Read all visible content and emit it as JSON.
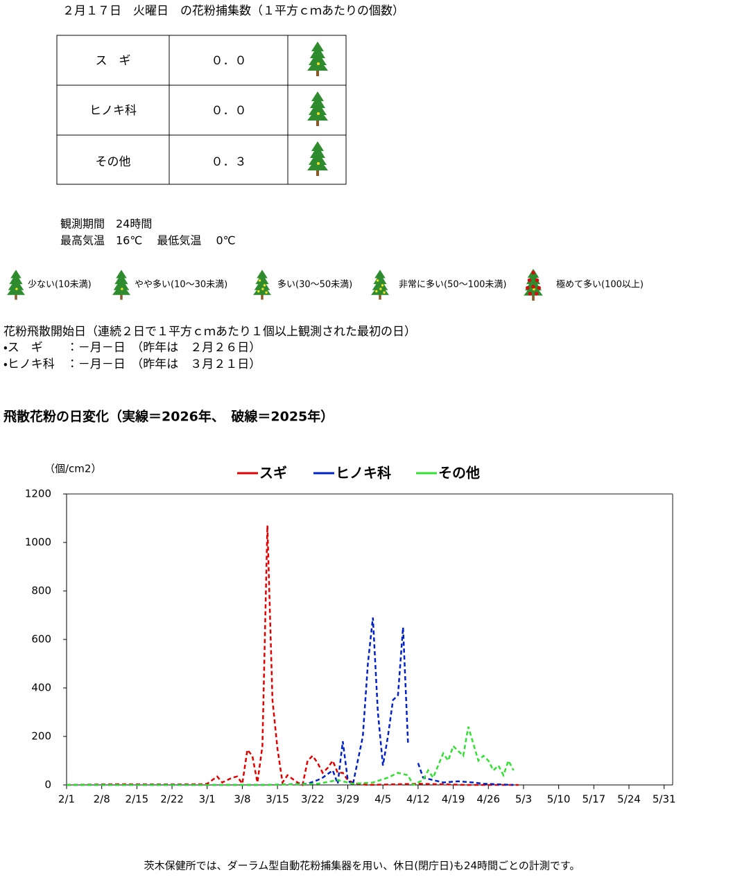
{
  "header": {
    "title": "２月１７日　火曜日　の花粉捕集数（１平方ｃｍあたりの個数）"
  },
  "table": {
    "rows": [
      [
        "ス　ギ",
        "０．０"
      ],
      [
        "ヒノキ科",
        "０．０"
      ],
      [
        "その他",
        "０．３"
      ]
    ]
  },
  "observation": {
    "lines": [
      "観測期間　24時間",
      "最高気温　16℃　 最低気温　 0℃"
    ]
  },
  "level_legend": {
    "items": [
      "少ない(10未満)",
      "やや多い(10～30未満)",
      "多い(30～50未満)",
      "非常に多い(50～100未満)",
      "極めて多い(100以上)"
    ]
  },
  "start_dates": {
    "heading": "花粉飛散開始日（連続２日で１平方ｃｍあたり１個以上観測された最初の日）",
    "lines": [
      "・ス　ギ　　：－月－日　（昨年は　２月２６日）",
      "・ヒノキ科　：－月－日　（昨年は　３月２１日）"
    ]
  },
  "section": {
    "title": "飛散花粉の日変化（実線＝2026年、　破線＝2025年）"
  },
  "chart_data": {
    "type": "line",
    "y_label": "（個/cm2）",
    "xlim": [
      0,
      120.7
    ],
    "xticks": [
      {
        "value": 0,
        "label": "2/1"
      },
      {
        "value": 7,
        "label": "2/8"
      },
      {
        "value": 14,
        "label": "2/15"
      },
      {
        "value": 21,
        "label": "2/22"
      },
      {
        "value": 28,
        "label": "3/1"
      },
      {
        "value": 35,
        "label": "3/8"
      },
      {
        "value": 42,
        "label": "3/15"
      },
      {
        "value": 49,
        "label": "3/22"
      },
      {
        "value": 56,
        "label": "3/29"
      },
      {
        "value": 63,
        "label": "4/5"
      },
      {
        "value": 70,
        "label": "4/12"
      },
      {
        "value": 77,
        "label": "4/19"
      },
      {
        "value": 84,
        "label": "4/26"
      },
      {
        "value": 91,
        "label": "5/3"
      },
      {
        "value": 98,
        "label": "5/10"
      },
      {
        "value": 105,
        "label": "5/17"
      },
      {
        "value": 112,
        "label": "5/24"
      },
      {
        "value": 119,
        "label": "5/31"
      }
    ],
    "ylim": [
      0,
      1200
    ],
    "yticks": [
      0,
      200,
      400,
      600,
      800,
      1000,
      1200
    ],
    "series": [
      {
        "name": "スギ",
        "color": "#e00000",
        "line_style": "dashed",
        "x": [
          0,
          10,
          20,
          27,
          28,
          30,
          31,
          33,
          34,
          35,
          36,
          37,
          38,
          39,
          40,
          41,
          42,
          43,
          44,
          45,
          46,
          47,
          48,
          49,
          50,
          51,
          52,
          53,
          54,
          55,
          56,
          57,
          58,
          60,
          70,
          80,
          90
        ],
        "values": [
          0,
          3,
          2,
          3,
          5,
          35,
          10,
          30,
          35,
          5,
          145,
          120,
          10,
          160,
          1070,
          350,
          150,
          10,
          40,
          25,
          10,
          0,
          100,
          120,
          90,
          50,
          70,
          100,
          50,
          50,
          20,
          10,
          5,
          0,
          5,
          0,
          0
        ]
      },
      {
        "name": "ヒノキ科",
        "color": "#0020c8",
        "line_style": "dashed",
        "x": [
          0,
          20,
          40,
          48,
          50,
          51,
          53,
          54,
          55,
          56,
          57,
          59,
          60,
          61,
          62,
          63,
          64,
          65,
          66,
          67,
          68,
          69,
          70,
          71,
          73,
          75,
          78,
          81,
          83,
          89
        ],
        "values": [
          0,
          0,
          0,
          5,
          20,
          30,
          60,
          5,
          180,
          20,
          0,
          200,
          500,
          690,
          300,
          80,
          200,
          350,
          370,
          650,
          170,
          null,
          90,
          30,
          20,
          10,
          15,
          10,
          5,
          0
        ]
      },
      {
        "name": "その他",
        "color": "#30e030",
        "line_style": "dashed",
        "x": [
          0,
          20,
          40,
          50,
          54,
          57,
          61,
          64,
          66,
          68,
          69,
          71,
          72,
          73,
          75,
          76,
          77,
          79,
          80,
          82,
          83,
          84,
          85,
          86,
          87,
          88,
          89
        ],
        "values": [
          0,
          0,
          0,
          5,
          20,
          5,
          10,
          30,
          50,
          40,
          0,
          20,
          60,
          30,
          130,
          100,
          160,
          120,
          240,
          100,
          120,
          100,
          60,
          80,
          40,
          100,
          60
        ]
      }
    ]
  },
  "footer": {
    "text": "茨木保健所では、ダーラム型自動花粉捕集器を用い、休日(閉庁日)も24時間ごとの計測です。"
  }
}
